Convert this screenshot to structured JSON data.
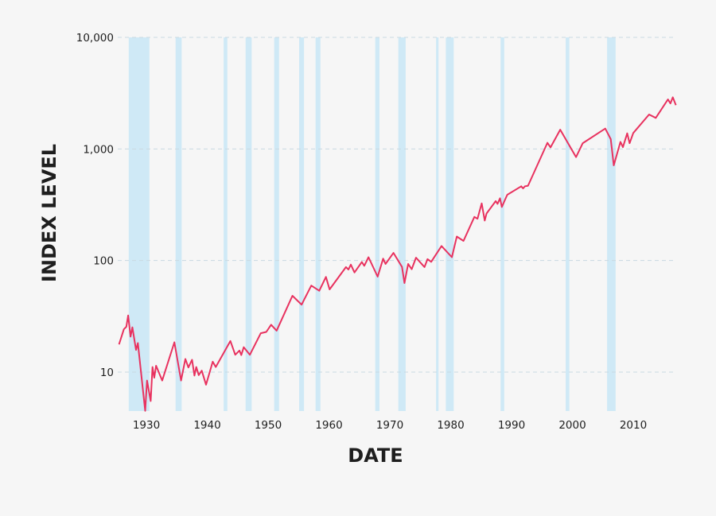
{
  "chart_data": {
    "type": "line",
    "title": "",
    "xlabel": "DATE",
    "ylabel": "INDEX LEVEL",
    "yscale": "log",
    "xlim": [
      1925.3,
      2017.2
    ],
    "ylim": [
      4.45,
      10000
    ],
    "grid": "horizontal dashed",
    "legend": "none",
    "colors": {
      "line": "#e8325f",
      "band": "#cfe9f6",
      "grid": "#c9d9e2",
      "background": "#f6f6f6",
      "text": "#1e1e1e"
    },
    "x_ticks": [
      {
        "value": 1930,
        "label": "1930"
      },
      {
        "value": 1940,
        "label": "1940"
      },
      {
        "value": 1950,
        "label": "1950"
      },
      {
        "value": 1960,
        "label": "1960"
      },
      {
        "value": 1970,
        "label": "1970"
      },
      {
        "value": 1980,
        "label": "1980"
      },
      {
        "value": 1990,
        "label": "1990"
      },
      {
        "value": 2000,
        "label": "2000"
      },
      {
        "value": 2010,
        "label": "2010"
      }
    ],
    "y_ticks": [
      {
        "value": 10,
        "label": "10"
      },
      {
        "value": 100,
        "label": "100"
      },
      {
        "value": 1000,
        "label": "1,000"
      },
      {
        "value": 10000,
        "label": "10,000"
      }
    ],
    "shaded_periods": [
      [
        1927.1,
        1930.5
      ],
      [
        1934.8,
        1935.8
      ],
      [
        1942.7,
        1943.3
      ],
      [
        1946.3,
        1947.3
      ],
      [
        1951.0,
        1951.8
      ],
      [
        1955.1,
        1955.9
      ],
      [
        1957.8,
        1958.6
      ],
      [
        1967.6,
        1968.3
      ],
      [
        1971.4,
        1972.6
      ],
      [
        1977.6,
        1978.0
      ],
      [
        1979.2,
        1980.5
      ],
      [
        1988.2,
        1988.8
      ],
      [
        1998.9,
        1999.5
      ],
      [
        2005.7,
        2007.1
      ]
    ],
    "series": [
      {
        "x": [
          1925.5,
          1926.3,
          1926.7,
          1927.0,
          1927.4,
          1927.7,
          1928.3,
          1928.6,
          1929.8,
          1930.1,
          1930.7,
          1931.0,
          1931.3,
          1931.6,
          1932.6,
          1934.6,
          1935.7,
          1936.4,
          1936.9,
          1937.5,
          1937.9,
          1938.2,
          1938.6,
          1939.1,
          1939.8,
          1940.9,
          1941.4,
          1943.8,
          1944.6,
          1945.3,
          1945.6,
          1946.0,
          1947.0,
          1948.8,
          1949.7,
          1950.5,
          1951.4,
          1954.0,
          1955.5,
          1957.1,
          1958.4,
          1959.5,
          1960.1,
          1962.8,
          1963.2,
          1963.6,
          1964.2,
          1965.4,
          1965.8,
          1966.5,
          1968.0,
          1968.9,
          1969.3,
          1970.6,
          1972.0,
          1972.4,
          1973.0,
          1973.6,
          1974.3,
          1975.7,
          1976.2,
          1976.8,
          1978.5,
          1980.2,
          1981.0,
          1982.1,
          1983.9,
          1984.4,
          1985.1,
          1985.6,
          1985.9,
          1987.4,
          1987.7,
          1988.1,
          1988.4,
          1989.3,
          1991.6,
          1991.9,
          1992.2,
          1992.7,
          1995.9,
          1996.4,
          1998.0,
          2000.6,
          2001.7,
          2005.4,
          2006.3,
          2006.8,
          2007.9,
          2008.3,
          2009.0,
          2009.4,
          2010.0,
          2012.6,
          2013.7,
          2015.7,
          2016.1,
          2016.5,
          2017.0
        ],
        "y": [
          17.7,
          24.2,
          25.5,
          32.2,
          20.8,
          25.2,
          15.8,
          18.2,
          4.5,
          8.4,
          5.5,
          11.1,
          8.9,
          11.4,
          8.4,
          18.5,
          8.4,
          13.1,
          11.0,
          12.9,
          9.3,
          11.1,
          9.4,
          10.3,
          7.7,
          12.4,
          11.1,
          19.0,
          14.3,
          15.6,
          14.2,
          16.7,
          14.3,
          22.3,
          22.9,
          26.6,
          23.5,
          48.3,
          40.2,
          59.6,
          53.6,
          71.3,
          55.1,
          87.3,
          83.0,
          92.0,
          78.2,
          96.9,
          89.7,
          107,
          71.6,
          104,
          93.1,
          117,
          87.7,
          62.8,
          93.1,
          83.6,
          106,
          87.3,
          103,
          97.3,
          135,
          107,
          164,
          150,
          246,
          237,
          325,
          228,
          264,
          341,
          322,
          361,
          302,
          388,
          463,
          443,
          463,
          468,
          1135,
          1033,
          1489,
          845,
          1127,
          1522,
          1224,
          713,
          1158,
          1038,
          1380,
          1127,
          1390,
          2037,
          1897,
          2780,
          2560,
          2904,
          2466
        ]
      }
    ]
  }
}
